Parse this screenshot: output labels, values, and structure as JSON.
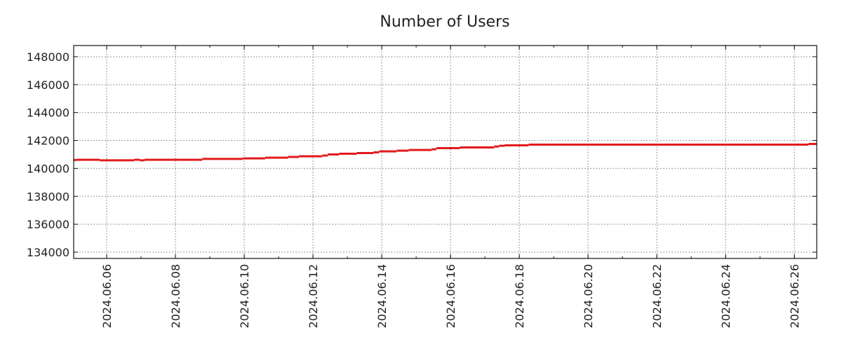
{
  "chart_data": {
    "type": "line",
    "title": "Number of Users",
    "xlabel": "",
    "ylabel": "",
    "x_unit": "day of June 2024",
    "xlim": [
      5.04,
      26.65
    ],
    "ylim": [
      133550,
      148800
    ],
    "grid": true,
    "legend": "none",
    "line_color": "#e31a1c",
    "step": "post",
    "x_ticks": [
      6,
      8,
      10,
      12,
      14,
      16,
      18,
      20,
      22,
      24,
      26
    ],
    "x_tick_labels": [
      "2024.06.06",
      "2024.06.08",
      "2024.06.10",
      "2024.06.12",
      "2024.06.14",
      "2024.06.16",
      "2024.06.18",
      "2024.06.20",
      "2024.06.22",
      "2024.06.24",
      "2024.06.26"
    ],
    "y_ticks": [
      134000,
      136000,
      138000,
      140000,
      142000,
      144000,
      146000,
      148000
    ],
    "y_tick_labels": [
      "134000",
      "136000",
      "138000",
      "140000",
      "142000",
      "144000",
      "146000",
      "148000"
    ],
    "series": [
      {
        "name": "Number of Users",
        "x": [
          5.04,
          5.12,
          5.8,
          6.8,
          6.96,
          7.1,
          8.78,
          9.96,
          10.61,
          11.27,
          11.59,
          12.27,
          12.43,
          12.76,
          13.27,
          13.76,
          13.92,
          14.43,
          14.78,
          15.45,
          15.59,
          16.27,
          17.27,
          17.41,
          17.57,
          18.27,
          26.41,
          26.65
        ],
        "y": [
          140600,
          140620,
          140580,
          140620,
          140580,
          140620,
          140680,
          140720,
          140770,
          140820,
          140870,
          140920,
          141000,
          141050,
          141100,
          141150,
          141220,
          141270,
          141320,
          141370,
          141450,
          141500,
          141570,
          141620,
          141650,
          141700,
          141750,
          141750
        ]
      }
    ]
  }
}
